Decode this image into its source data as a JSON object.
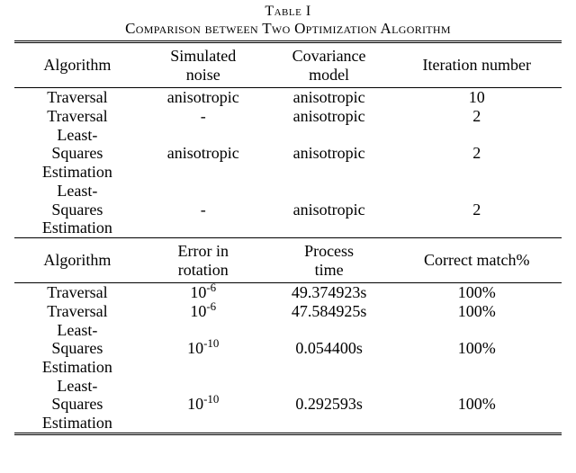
{
  "caption": {
    "label": "Table I",
    "title": "Comparison between Two Optimization Algorithm"
  },
  "part1": {
    "headers": {
      "c1": "Algorithm",
      "c2a": "Simulated",
      "c2b": "noise",
      "c3a": "Covariance",
      "c3b": "model",
      "c4": "Iteration number"
    },
    "rows": [
      {
        "algo": "Traversal",
        "sim": "anisotropic",
        "cov": "anisotropic",
        "iter": "10"
      },
      {
        "algo": "Traversal",
        "sim": "-",
        "cov": "anisotropic",
        "iter": "2"
      },
      {
        "algo_a": "Least-",
        "algo_b": "Squares",
        "algo_c": "Estimation",
        "sim": "anisotropic",
        "cov": "anisotropic",
        "iter": "2"
      },
      {
        "algo_a": "Least-",
        "algo_b": "Squares",
        "algo_c": "Estimation",
        "sim": "-",
        "cov": "anisotropic",
        "iter": "2"
      }
    ]
  },
  "part2": {
    "headers": {
      "c1": "Algorithm",
      "c2a": "Error in",
      "c2b": "rotation",
      "c3a": "Process",
      "c3b": "time",
      "c4": "Correct match%"
    },
    "rows": [
      {
        "algo": "Traversal",
        "err_base": "10",
        "err_exp": "-6",
        "time": "49.374923s",
        "match": "100%"
      },
      {
        "algo": "Traversal",
        "err_base": "10",
        "err_exp": "-6",
        "time": "47.584925s",
        "match": "100%"
      },
      {
        "algo_a": "Least-",
        "algo_b": "Squares",
        "algo_c": "Estimation",
        "err_base": "10",
        "err_exp": "-10",
        "time": "0.054400s",
        "match": "100%"
      },
      {
        "algo_a": "Least-",
        "algo_b": "Squares",
        "algo_c": "Estimation",
        "err_base": "10",
        "err_exp": "-10",
        "time": "0.292593s",
        "match": "100%"
      }
    ]
  }
}
